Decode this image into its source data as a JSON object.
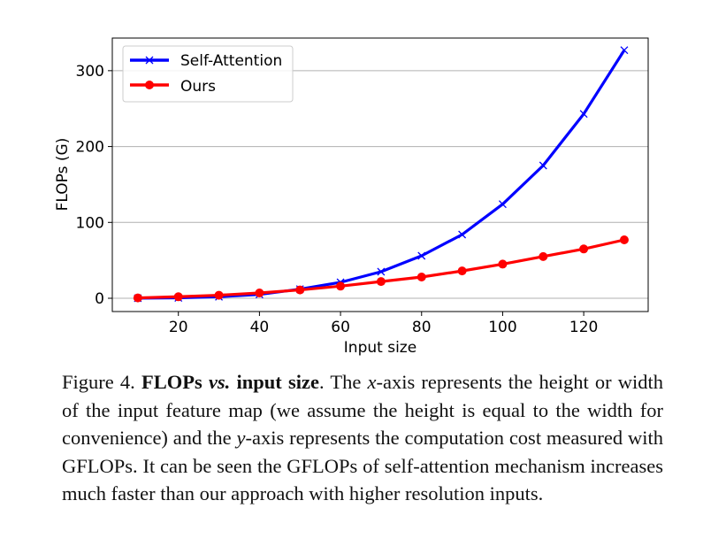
{
  "chart_data": {
    "type": "line",
    "xlabel": "Input size",
    "ylabel": "FLOPs (G)",
    "xlim": [
      3.7,
      135.9
    ],
    "ylim": [
      -17.5,
      343
    ],
    "xticks": [
      20,
      40,
      60,
      80,
      100,
      120
    ],
    "yticks": [
      0,
      100,
      200,
      300
    ],
    "grid": "horizontal",
    "legend_placement": "top-left",
    "x": [
      10,
      20,
      30,
      40,
      50,
      60,
      70,
      80,
      90,
      100,
      110,
      120,
      130
    ],
    "series": [
      {
        "name": "Self-Attention",
        "color": "#0000ff",
        "marker": "x",
        "values": [
          0.1,
          0.5,
          2,
          5,
          12,
          21,
          35,
          56,
          84,
          124,
          175,
          243,
          327
        ]
      },
      {
        "name": "Ours",
        "color": "#ff0000",
        "marker": "circle",
        "values": [
          0.5,
          2,
          4,
          7,
          11,
          16,
          22,
          28,
          36,
          45,
          55,
          65,
          77
        ]
      }
    ]
  },
  "caption": {
    "label": "Figure 4.",
    "title_bold1": "FLOPs",
    "title_italic": "vs.",
    "title_bold2": "input size",
    "text1": ". The ",
    "x_var": "x",
    "text2": "-axis represents the height or width of the input feature map (we assume the height is equal to the width for convenience) and the ",
    "y_var": "y",
    "text3": "-axis represents the computation cost measured with GFLOPs. It can be seen the GFLOPs of self-attention mechanism increases much faster than our approach with higher resolution inputs."
  }
}
